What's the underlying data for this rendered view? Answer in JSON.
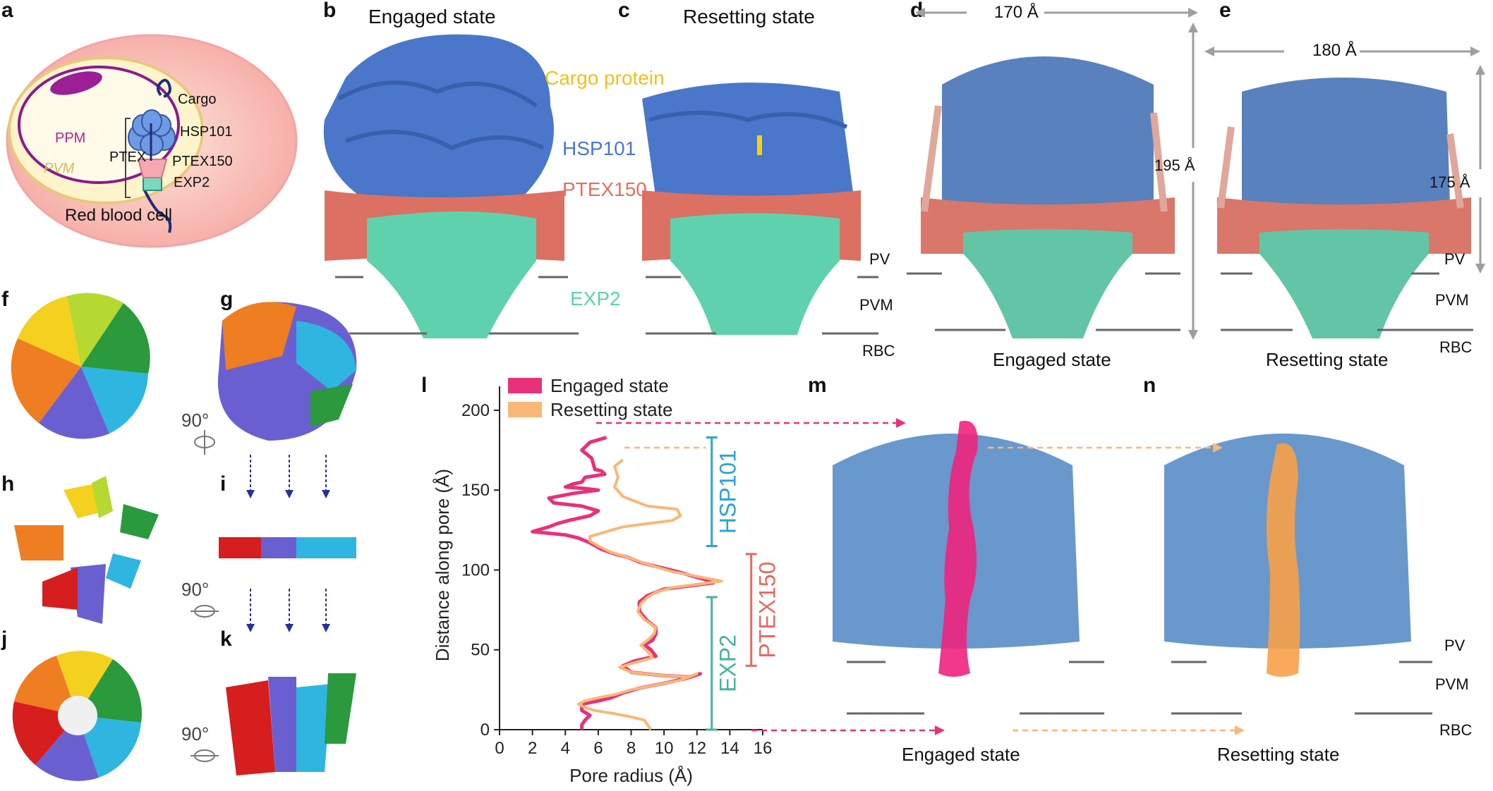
{
  "panel_labels": {
    "a": "a",
    "b": "b",
    "c": "c",
    "d": "d",
    "e": "e",
    "f": "f",
    "g": "g",
    "h": "h",
    "i": "i",
    "j": "j",
    "k": "k",
    "l": "l",
    "m": "m",
    "n": "n"
  },
  "panel_a": {
    "ppm": "PPM",
    "pvm": "PVM",
    "ptex": "PTEX",
    "cargo": "Cargo",
    "hsp101": "HSP101",
    "ptex150": "PTEX150",
    "exp2": "EXP2",
    "rbc": "Red blood cell"
  },
  "panel_b": {
    "title": "Engaged state",
    "hsp101": "HSP101",
    "ptex150": "PTEX150",
    "exp2": "EXP2"
  },
  "panel_c": {
    "title": "Resetting state",
    "cargo": "Cargo protein",
    "pv": "PV",
    "pvm": "PVM",
    "rbc": "RBC"
  },
  "panel_d": {
    "width": "170 Å",
    "height": "195 Å",
    "caption": "Engaged state"
  },
  "panel_e": {
    "width": "180 Å",
    "height": "175 Å",
    "caption": "Resetting state",
    "pv": "PV",
    "pvm": "PVM",
    "rbc": "RBC"
  },
  "rotation": {
    "g": "90°",
    "i": "90°",
    "k": "90°"
  },
  "chart_data": {
    "type": "line",
    "xlabel": "Pore radius (Å)",
    "ylabel": "Distance along pore (Å)",
    "xlim": [
      0,
      16
    ],
    "ylim": [
      0,
      215
    ],
    "xticks": [
      "0",
      "2",
      "4",
      "6",
      "8",
      "10",
      "12",
      "14",
      "16"
    ],
    "yticks": [
      "0",
      "50",
      "100",
      "150",
      "200"
    ],
    "legend_position": "top",
    "series": [
      {
        "name": "Engaged state",
        "color": "#e8317a",
        "points": [
          [
            6.5,
            183
          ],
          [
            5.5,
            180
          ],
          [
            5.0,
            175
          ],
          [
            5.6,
            170
          ],
          [
            5.8,
            163
          ],
          [
            6.2,
            162
          ],
          [
            6.4,
            160
          ],
          [
            5.2,
            158
          ],
          [
            5.0,
            155
          ],
          [
            4.5,
            154
          ],
          [
            4.0,
            152
          ],
          [
            5.2,
            151
          ],
          [
            6.0,
            150
          ],
          [
            4.5,
            148
          ],
          [
            3.0,
            145
          ],
          [
            3.3,
            142
          ],
          [
            5.0,
            140
          ],
          [
            6.0,
            137
          ],
          [
            5.5,
            134
          ],
          [
            4.2,
            131
          ],
          [
            3.5,
            129
          ],
          [
            3.0,
            127
          ],
          [
            2.0,
            124
          ],
          [
            3.0,
            123
          ],
          [
            4.0,
            122
          ],
          [
            4.8,
            120
          ],
          [
            5.5,
            117
          ],
          [
            6.2,
            113
          ],
          [
            7.0,
            110
          ],
          [
            7.8,
            108
          ],
          [
            8.5,
            105
          ],
          [
            9.2,
            103
          ],
          [
            10.0,
            101
          ],
          [
            10.8,
            99
          ],
          [
            11.8,
            96
          ],
          [
            12.5,
            94
          ],
          [
            13.0,
            92
          ],
          [
            11.5,
            90
          ],
          [
            10.0,
            88
          ],
          [
            9.0,
            84
          ],
          [
            8.5,
            80
          ],
          [
            8.5,
            74
          ],
          [
            9.0,
            68
          ],
          [
            9.5,
            64
          ],
          [
            9.5,
            60
          ],
          [
            9.3,
            56
          ],
          [
            8.8,
            53
          ],
          [
            9.2,
            50
          ],
          [
            9.5,
            46
          ],
          [
            8.2,
            43
          ],
          [
            7.5,
            40
          ],
          [
            8.0,
            36
          ],
          [
            9.8,
            34
          ],
          [
            11.5,
            33
          ],
          [
            12.2,
            35
          ],
          [
            11.3,
            32
          ],
          [
            10.0,
            29
          ],
          [
            8.5,
            26
          ],
          [
            7.5,
            23
          ],
          [
            6.8,
            20
          ],
          [
            6.0,
            18
          ],
          [
            5.0,
            16
          ],
          [
            5.0,
            12
          ],
          [
            5.5,
            9
          ],
          [
            5.2,
            6
          ],
          [
            5.0,
            3
          ],
          [
            5.0,
            0
          ]
        ]
      },
      {
        "name": "Resetting state",
        "color": "#f8b877",
        "points": [
          [
            7.5,
            169
          ],
          [
            7.0,
            165
          ],
          [
            7.2,
            158
          ],
          [
            7.0,
            152
          ],
          [
            7.5,
            146
          ],
          [
            9.0,
            140
          ],
          [
            10.8,
            138
          ],
          [
            11.0,
            134
          ],
          [
            10.5,
            131
          ],
          [
            9.0,
            129
          ],
          [
            7.5,
            127
          ],
          [
            6.5,
            124
          ],
          [
            5.5,
            121
          ],
          [
            5.5,
            118
          ],
          [
            6.0,
            115
          ],
          [
            6.8,
            111
          ],
          [
            7.8,
            108
          ],
          [
            8.6,
            105
          ],
          [
            9.5,
            102
          ],
          [
            10.5,
            99
          ],
          [
            11.5,
            97
          ],
          [
            12.5,
            95
          ],
          [
            13.5,
            93
          ],
          [
            12.0,
            91
          ],
          [
            10.5,
            89
          ],
          [
            9.5,
            86
          ],
          [
            9.0,
            83
          ],
          [
            8.6,
            79
          ],
          [
            8.4,
            74
          ],
          [
            8.8,
            69
          ],
          [
            9.5,
            64
          ],
          [
            9.4,
            60
          ],
          [
            9.0,
            56
          ],
          [
            8.6,
            53
          ],
          [
            9.0,
            49
          ],
          [
            9.3,
            45
          ],
          [
            8.2,
            42
          ],
          [
            7.3,
            39
          ],
          [
            8.0,
            36
          ],
          [
            9.8,
            34
          ],
          [
            11.5,
            33
          ],
          [
            12.0,
            35
          ],
          [
            11.0,
            31
          ],
          [
            9.5,
            28
          ],
          [
            8.0,
            25
          ],
          [
            7.0,
            22
          ],
          [
            6.0,
            20
          ],
          [
            5.2,
            18
          ],
          [
            4.8,
            16
          ],
          [
            5.2,
            14
          ],
          [
            5.8,
            12
          ],
          [
            7.0,
            10
          ],
          [
            8.0,
            8
          ],
          [
            8.8,
            6
          ],
          [
            9.0,
            3
          ],
          [
            9.2,
            0
          ]
        ]
      }
    ],
    "annotations": [
      {
        "label": "HSP101",
        "color": "#2ba3da",
        "range": [
          115,
          183
        ]
      },
      {
        "label": "PTEX150",
        "color": "#e66a63",
        "range": [
          40,
          110
        ]
      },
      {
        "label": "EXP2",
        "color": "#47b29e",
        "range": [
          0,
          83
        ]
      }
    ]
  },
  "panel_m": {
    "caption": "Engaged state"
  },
  "panel_n": {
    "caption": "Resetting state",
    "pv": "PV",
    "pvm": "PVM",
    "rbc": "RBC"
  }
}
